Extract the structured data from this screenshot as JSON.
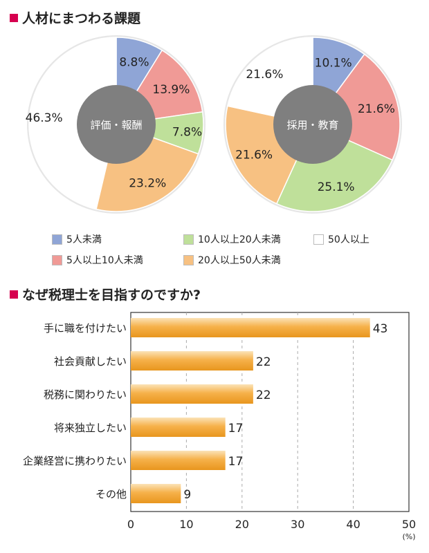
{
  "titles": {
    "section1": "人材にまつわる課題",
    "section2": "なぜ税理士を目指すのですか?"
  },
  "colors": {
    "accent": "#d6004f",
    "blue": "#8fa5d6",
    "pink": "#f09a96",
    "green": "#bfe09a",
    "orange": "#f7c182",
    "white": "#ffffff",
    "center": "#7f7f7f",
    "bar": "#f2a830"
  },
  "legend": [
    {
      "label": "5人未満",
      "color": "#8fa5d6"
    },
    {
      "label": "10人以上20人未満",
      "color": "#bfe09a"
    },
    {
      "label": "50人以上",
      "color": "#ffffff"
    },
    {
      "label": "5人以上10人未満",
      "color": "#f09a96"
    },
    {
      "label": "20人以上50人未満",
      "color": "#f7c182"
    }
  ],
  "chart_data": [
    {
      "type": "pie",
      "center_label": "評価・報酬",
      "slices": [
        {
          "category": "5人未満",
          "value": 8.8,
          "label": "8.8%"
        },
        {
          "category": "5人以上10人未満",
          "value": 13.9,
          "label": "13.9%"
        },
        {
          "category": "10人以上20人未満",
          "value": 7.8,
          "label": "7.8%"
        },
        {
          "category": "20人以上50人未満",
          "value": 23.2,
          "label": "23.2%"
        },
        {
          "category": "50人以上",
          "value": 46.3,
          "label": "46.3%"
        }
      ]
    },
    {
      "type": "pie",
      "center_label": "採用・教育",
      "slices": [
        {
          "category": "5人未満",
          "value": 10.1,
          "label": "10.1%"
        },
        {
          "category": "5人以上10人未満",
          "value": 21.6,
          "label": "21.6%"
        },
        {
          "category": "10人以上20人未満",
          "value": 25.1,
          "label": "25.1%"
        },
        {
          "category": "20人以上50人未満",
          "value": 21.6,
          "label": "21.6%"
        },
        {
          "category": "50人以上",
          "value": 21.6,
          "label": "21.6%"
        }
      ]
    },
    {
      "type": "bar",
      "orientation": "horizontal",
      "categories": [
        "手に職を付けたい",
        "社会貢献したい",
        "税務に関わりたい",
        "将来独立したい",
        "企業経営に携わりたい",
        "その他"
      ],
      "values": [
        43,
        22,
        22,
        17,
        17,
        9
      ],
      "xlim": [
        0,
        50
      ],
      "xticks": [
        "0",
        "10",
        "20",
        "30",
        "40",
        "50"
      ],
      "xunit": "(%)",
      "grid": true
    }
  ]
}
